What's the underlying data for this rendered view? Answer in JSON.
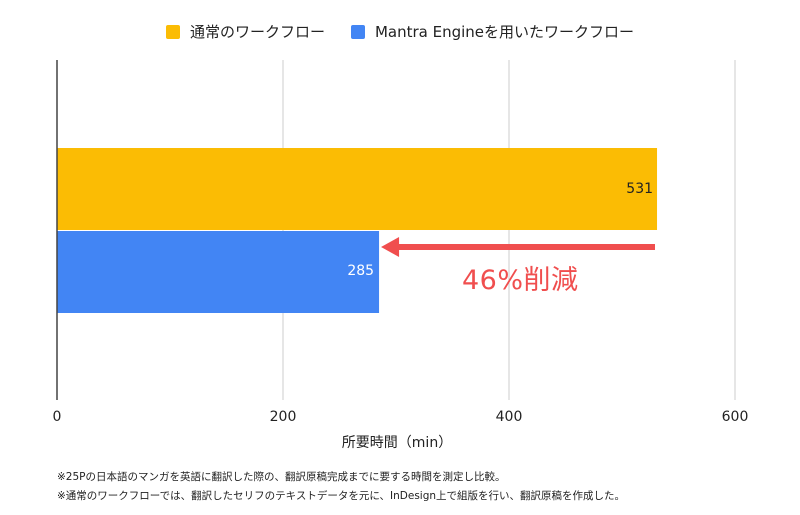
{
  "chart_data": {
    "type": "bar",
    "orientation": "horizontal",
    "categories": [
      ""
    ],
    "series": [
      {
        "name": "通常のワークフロー",
        "values": [
          531
        ],
        "color": "#fbbc04"
      },
      {
        "name": "Mantra Engineを用いたワークフロー",
        "values": [
          285
        ],
        "color": "#4285f4"
      }
    ],
    "xlabel": "所要時間（min）",
    "ylabel": "",
    "xlim": [
      0,
      600
    ],
    "xticks": [
      "0",
      "200",
      "400",
      "600"
    ],
    "data_labels": [
      "531",
      "285"
    ],
    "legend_position": "top-center",
    "grid": true,
    "annotation": {
      "text": "46%削減",
      "color": "#f04e4e"
    }
  },
  "notes": [
    "※25Pの日本語のマンガを英語に翻訳した際の、翻訳原稿完成までに要する時間を測定し比較。",
    "※通常のワークフローでは、翻訳したセリフのテキストデータを元に、InDesign上で組版を行い、翻訳原稿を作成した。"
  ]
}
